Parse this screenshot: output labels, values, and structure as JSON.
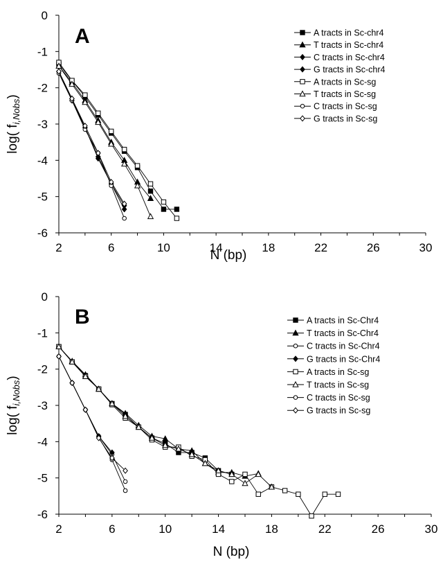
{
  "chart_data": [
    {
      "type": "line",
      "panel_label": "A",
      "xlabel": "N (bp)",
      "ylabel": "log( f",
      "ylabel_sub": "i,Nobs",
      "ylabel_close": ")",
      "xlim": [
        2,
        30
      ],
      "ylim": [
        -6,
        0
      ],
      "xticks": [
        2,
        6,
        10,
        14,
        18,
        22,
        26,
        30
      ],
      "yticks": [
        0,
        -1,
        -2,
        -3,
        -4,
        -5,
        -6
      ],
      "legend_position": "top-right",
      "series": [
        {
          "name": "A tracts in Sc-chr4",
          "marker": "square-filled",
          "x": [
            2,
            3,
            4,
            5,
            6,
            7,
            8,
            9,
            10,
            11
          ],
          "y": [
            -1.35,
            -1.8,
            -2.25,
            -2.75,
            -3.25,
            -3.75,
            -4.2,
            -4.85,
            -5.35,
            -5.35
          ]
        },
        {
          "name": "T tracts in Sc-chr4",
          "marker": "triangle-filled",
          "x": [
            2,
            3,
            4,
            5,
            6,
            7,
            8,
            9
          ],
          "y": [
            -1.4,
            -1.85,
            -2.35,
            -2.9,
            -3.5,
            -4.0,
            -4.6,
            -5.05
          ]
        },
        {
          "name": "C tracts in Sc-chr4",
          "marker": "diamond-filled",
          "x": [
            2,
            3,
            4,
            5,
            6,
            7
          ],
          "y": [
            -1.55,
            -2.3,
            -3.1,
            -3.9,
            -4.65,
            -5.25
          ]
        },
        {
          "name": "G tracts in Sc-chr4",
          "marker": "diamond-filled",
          "x": [
            2,
            3,
            4,
            5,
            6,
            7
          ],
          "y": [
            -1.55,
            -2.35,
            -3.1,
            -3.95,
            -4.65,
            -5.35
          ]
        },
        {
          "name": "A tracts in Sc-sg",
          "marker": "square-open",
          "x": [
            2,
            3,
            4,
            5,
            6,
            7,
            8,
            9,
            10,
            11
          ],
          "y": [
            -1.3,
            -1.8,
            -2.2,
            -2.7,
            -3.2,
            -3.7,
            -4.15,
            -4.65,
            -5.15,
            -5.6
          ]
        },
        {
          "name": "T tracts in Sc-sg",
          "marker": "triangle-open",
          "x": [
            2,
            3,
            4,
            5,
            6,
            7,
            8,
            9
          ],
          "y": [
            -1.4,
            -1.9,
            -2.4,
            -2.95,
            -3.55,
            -4.1,
            -4.7,
            -5.55
          ]
        },
        {
          "name": "C tracts in Sc-sg",
          "marker": "circle-open",
          "x": [
            2,
            3,
            4,
            5,
            6,
            7
          ],
          "y": [
            -1.6,
            -2.35,
            -3.15,
            -3.8,
            -4.7,
            -5.6
          ]
        },
        {
          "name": "G tracts in Sc-sg",
          "marker": "diamond-open",
          "x": [
            2,
            3,
            4,
            5,
            6,
            7
          ],
          "y": [
            -1.55,
            -2.3,
            -3.05,
            -3.8,
            -4.6,
            -5.2
          ]
        }
      ]
    },
    {
      "type": "line",
      "panel_label": "B",
      "xlabel": "N (bp)",
      "ylabel": "log( f",
      "ylabel_sub": "i,Nobs",
      "ylabel_close": ")",
      "xlim": [
        2,
        30
      ],
      "ylim": [
        -6,
        0
      ],
      "xticks": [
        2,
        6,
        10,
        14,
        18,
        22,
        26,
        30
      ],
      "yticks": [
        0,
        -1,
        -2,
        -3,
        -4,
        -5,
        -6
      ],
      "legend_position": "top-right",
      "series": [
        {
          "name": "A tracts in Sc-Chr4",
          "marker": "square-filled",
          "x": [
            2,
            3,
            4,
            5,
            6,
            7,
            8,
            9,
            10,
            11,
            12,
            13,
            14,
            15
          ],
          "y": [
            -1.38,
            -1.8,
            -2.18,
            -2.55,
            -2.95,
            -3.25,
            -3.6,
            -3.9,
            -4.05,
            -4.3,
            -4.3,
            -4.45,
            -4.8,
            -4.9
          ]
        },
        {
          "name": "T tracts in Sc-Chr4",
          "marker": "triangle-filled",
          "x": [
            2,
            3,
            4,
            5,
            6,
            7,
            8,
            9,
            10,
            11,
            12,
            13,
            14,
            15,
            16,
            17
          ],
          "y": [
            -1.38,
            -1.78,
            -2.15,
            -2.55,
            -2.95,
            -3.22,
            -3.55,
            -3.85,
            -3.92,
            -4.2,
            -4.25,
            -4.6,
            -4.85,
            -4.85,
            -4.95,
            -4.88
          ]
        },
        {
          "name": "C tracts in Sc-Chr4",
          "marker": "circle-open",
          "x": [
            2,
            3,
            4,
            5,
            6,
            7
          ],
          "y": [
            -1.65,
            -2.38,
            -3.12,
            -3.85,
            -4.35,
            -5.1
          ]
        },
        {
          "name": "G tracts in Sc-Chr4",
          "marker": "diamond-filled",
          "x": [
            2,
            3,
            4,
            5,
            6
          ],
          "y": [
            -1.65,
            -2.38,
            -3.12,
            -3.85,
            -4.3
          ]
        },
        {
          "name": "A tracts in Sc-sg",
          "marker": "square-open",
          "x": [
            2,
            3,
            4,
            5,
            6,
            7,
            8,
            9,
            10,
            11,
            12,
            13,
            14,
            15,
            16,
            17,
            18,
            19,
            20,
            21,
            22,
            23
          ],
          "y": [
            -1.38,
            -1.8,
            -2.2,
            -2.55,
            -2.98,
            -3.35,
            -3.6,
            -3.95,
            -4.15,
            -4.15,
            -4.4,
            -4.5,
            -4.9,
            -5.1,
            -4.9,
            -5.45,
            -5.25,
            -5.35,
            -5.45,
            -6.05,
            -5.45,
            -5.45
          ]
        },
        {
          "name": "T tracts in Sc-sg",
          "marker": "triangle-open",
          "x": [
            2,
            3,
            4,
            5,
            6,
            7,
            8,
            9,
            10,
            11,
            12,
            13,
            14,
            15,
            16,
            17,
            18
          ],
          "y": [
            -1.38,
            -1.8,
            -2.2,
            -2.55,
            -2.95,
            -3.3,
            -3.6,
            -3.9,
            -4.1,
            -4.2,
            -4.35,
            -4.6,
            -4.8,
            -4.9,
            -5.15,
            -4.9,
            -5.25
          ]
        },
        {
          "name": "C tracts in Sc-sg",
          "marker": "circle-open",
          "x": [
            2,
            3,
            4,
            5,
            6,
            7
          ],
          "y": [
            -1.65,
            -2.38,
            -3.12,
            -3.88,
            -4.5,
            -5.35
          ]
        },
        {
          "name": "G tracts in Sc-sg",
          "marker": "diamond-open",
          "x": [
            2,
            3,
            4,
            5,
            6,
            7
          ],
          "y": [
            -1.65,
            -2.38,
            -3.12,
            -3.9,
            -4.45,
            -4.8
          ]
        }
      ]
    }
  ]
}
